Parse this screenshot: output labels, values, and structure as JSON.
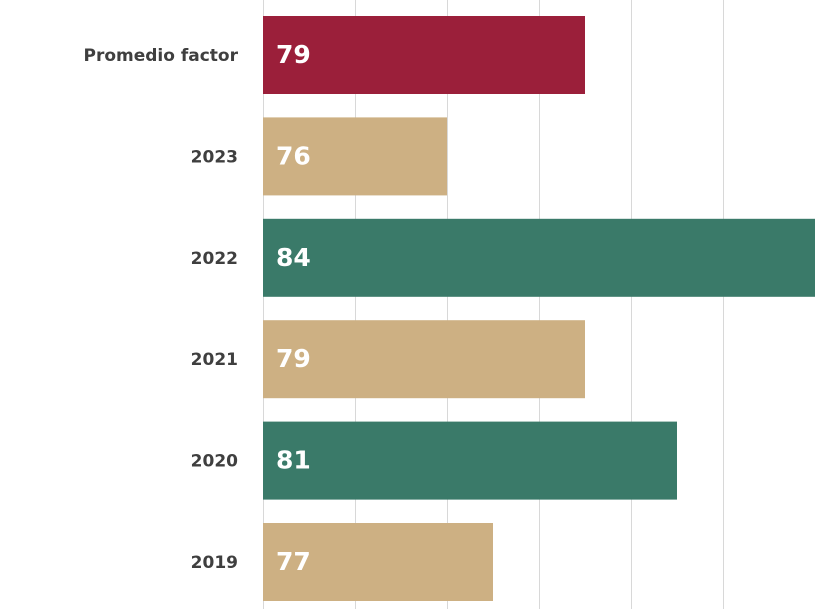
{
  "chart_data": {
    "type": "bar",
    "orientation": "horizontal",
    "categories": [
      "Promedio factor",
      "2023",
      "2022",
      "2021",
      "2020",
      "2019"
    ],
    "values": [
      79,
      76,
      84,
      79,
      81,
      77
    ],
    "data_labels": [
      "79",
      "76",
      "84",
      "79",
      "81",
      "77"
    ],
    "bar_colors": [
      "#9b1f3a",
      "#cdb083",
      "#3a7a69",
      "#cdb083",
      "#3a7a69",
      "#cdb083"
    ],
    "title": "",
    "xlabel": "",
    "ylabel": "",
    "xlim": [
      72,
      84
    ],
    "grid": true,
    "legend": "none"
  }
}
